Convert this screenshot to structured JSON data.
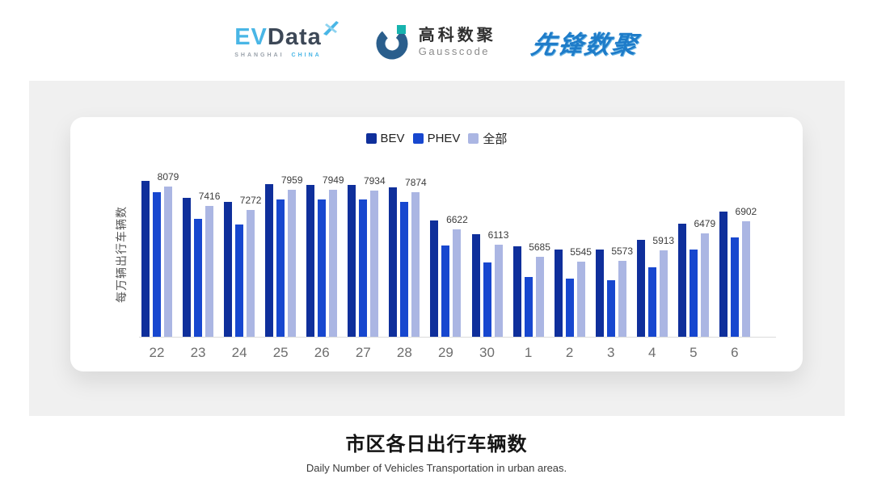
{
  "header": {
    "evdata": {
      "ev": "EV",
      "data": "Data",
      "sub1": "SHANGHAI",
      "sub2": "CHINA"
    },
    "gausscode": {
      "cn": "高科数聚",
      "en": "Gausscode"
    },
    "xianfeng": {
      "text": "先锋数聚"
    }
  },
  "chart_data": {
    "type": "bar",
    "title": "市区各日出行车辆数",
    "subtitle": "Daily Number of Vehicles Transportation in urban areas.",
    "xlabel": "",
    "ylabel": "每万辆出行车辆数",
    "categories": [
      "22",
      "23",
      "24",
      "25",
      "26",
      "27",
      "28",
      "29",
      "30",
      "1",
      "2",
      "3",
      "4",
      "5",
      "6"
    ],
    "series": [
      {
        "name": "BEV",
        "color": "#0f2f9b",
        "values": [
          8260,
          7690,
          7560,
          8140,
          8130,
          8130,
          8050,
          6910,
          6450,
          6050,
          5930,
          5930,
          6260,
          6800,
          7210
        ]
      },
      {
        "name": "PHEV",
        "color": "#1747cf",
        "values": [
          7870,
          6980,
          6780,
          7640,
          7630,
          7620,
          7560,
          6070,
          5500,
          5020,
          4950,
          4910,
          5350,
          5940,
          6360
        ]
      },
      {
        "name": "全部",
        "color": "#abb6e3",
        "values": [
          8079,
          7416,
          7272,
          7959,
          7949,
          7934,
          7874,
          6622,
          6113,
          5685,
          5545,
          5573,
          5913,
          6479,
          6902
        ]
      }
    ],
    "data_labels": [
      "8079",
      "7416",
      "7272",
      "7959",
      "7949",
      "7934",
      "7874",
      "6622",
      "6113",
      "5685",
      "5545",
      "5573",
      "5913",
      "6479",
      "6902"
    ],
    "ylim": [
      3000,
      8500
    ],
    "grid": false,
    "legend_position": "top"
  },
  "footer": {
    "title": "市区各日出行车辆数",
    "subtitle": "Daily Number of Vehicles Transportation in urban areas."
  },
  "colors": {
    "panel_bg": "#f0f0f0",
    "card_bg": "#ffffff",
    "axis_line": "#dcdcdc",
    "tick_text": "#6e6e6e",
    "evdata_blue": "#49b6e6",
    "evdata_dark": "#3d4857",
    "gauss_navy": "#2a5e8c",
    "gauss_teal": "#17b3ae",
    "xianfeng_blue": "#1e7cc9"
  }
}
